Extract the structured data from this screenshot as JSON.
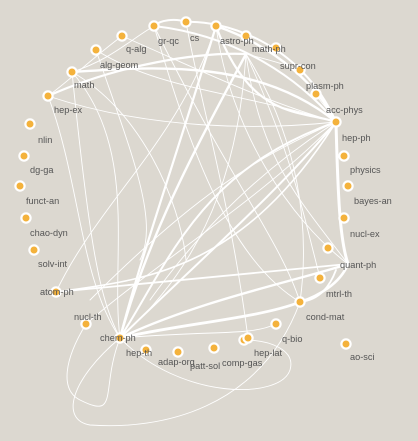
{
  "diagram": {
    "type": "network-graph",
    "colors": {
      "background": "#dcd8d0",
      "node_fill": "#f4b23c",
      "node_stroke": "#ffffff",
      "edge": "#ffffff",
      "label": "#555555"
    },
    "nodes": [
      {
        "id": "gr-qc",
        "label": "gr-qc"
      },
      {
        "id": "cs",
        "label": "cs"
      },
      {
        "id": "astro-ph",
        "label": "astro-ph"
      },
      {
        "id": "math-ph",
        "label": "math-ph"
      },
      {
        "id": "q-alg",
        "label": "q-alg"
      },
      {
        "id": "supr-con",
        "label": "supr-con"
      },
      {
        "id": "alg-geom",
        "label": "alg-geom"
      },
      {
        "id": "plasm-ph",
        "label": "plasm-ph"
      },
      {
        "id": "math",
        "label": "math"
      },
      {
        "id": "hep-ex",
        "label": "hep-ex"
      },
      {
        "id": "acc-phys",
        "label": "acc-phys"
      },
      {
        "id": "hep-ph",
        "label": "hep-ph"
      },
      {
        "id": "nlin",
        "label": "nlin"
      },
      {
        "id": "dg-ga",
        "label": "dg-ga"
      },
      {
        "id": "physics",
        "label": "physics"
      },
      {
        "id": "funct-an",
        "label": "funct-an"
      },
      {
        "id": "bayes-an",
        "label": "bayes-an"
      },
      {
        "id": "chao-dyn",
        "label": "chao-dyn"
      },
      {
        "id": "nucl-ex",
        "label": "nucl-ex"
      },
      {
        "id": "solv-int",
        "label": "solv-int"
      },
      {
        "id": "quant-ph",
        "label": "quant-ph"
      },
      {
        "id": "mtrl-th",
        "label": "mtrl-th"
      },
      {
        "id": "atom-ph",
        "label": "atom-ph"
      },
      {
        "id": "nucl-th",
        "label": "nucl-th"
      },
      {
        "id": "cond-mat",
        "label": "cond-mat"
      },
      {
        "id": "q-bio",
        "label": "q-bio"
      },
      {
        "id": "chem-ph",
        "label": "chem-ph"
      },
      {
        "id": "hep-th",
        "label": "hep-th"
      },
      {
        "id": "adap-org",
        "label": "adap-org"
      },
      {
        "id": "patt-sol",
        "label": "patt-sol"
      },
      {
        "id": "comp-gas",
        "label": "comp-gas"
      },
      {
        "id": "hep-lat",
        "label": "hep-lat"
      },
      {
        "id": "ao-sci",
        "label": "ao-sci"
      }
    ]
  }
}
